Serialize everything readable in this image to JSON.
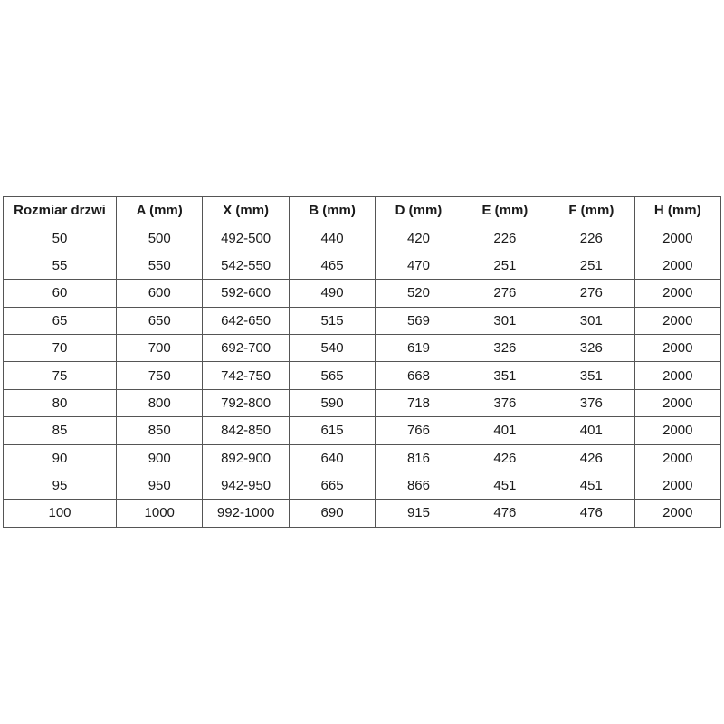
{
  "page": {
    "background": "#ffffff"
  },
  "table": {
    "columns": [
      "Rozmiar drzwi",
      "A (mm)",
      "X (mm)",
      "B (mm)",
      "D (mm)",
      "E (mm)",
      "F (mm)",
      "H (mm)"
    ],
    "rows": [
      [
        "50",
        "500",
        "492-500",
        "440",
        "420",
        "226",
        "226",
        "2000"
      ],
      [
        "55",
        "550",
        "542-550",
        "465",
        "470",
        "251",
        "251",
        "2000"
      ],
      [
        "60",
        "600",
        "592-600",
        "490",
        "520",
        "276",
        "276",
        "2000"
      ],
      [
        "65",
        "650",
        "642-650",
        "515",
        "569",
        "301",
        "301",
        "2000"
      ],
      [
        "70",
        "700",
        "692-700",
        "540",
        "619",
        "326",
        "326",
        "2000"
      ],
      [
        "75",
        "750",
        "742-750",
        "565",
        "668",
        "351",
        "351",
        "2000"
      ],
      [
        "80",
        "800",
        "792-800",
        "590",
        "718",
        "376",
        "376",
        "2000"
      ],
      [
        "85",
        "850",
        "842-850",
        "615",
        "766",
        "401",
        "401",
        "2000"
      ],
      [
        "90",
        "900",
        "892-900",
        "640",
        "816",
        "426",
        "426",
        "2000"
      ],
      [
        "95",
        "950",
        "942-950",
        "665",
        "866",
        "451",
        "451",
        "2000"
      ],
      [
        "100",
        "1000",
        "992-1000",
        "690",
        "915",
        "476",
        "476",
        "2000"
      ]
    ],
    "colors": {
      "border": "#555555",
      "text": "#1a1a1a",
      "background": "#ffffff"
    }
  }
}
